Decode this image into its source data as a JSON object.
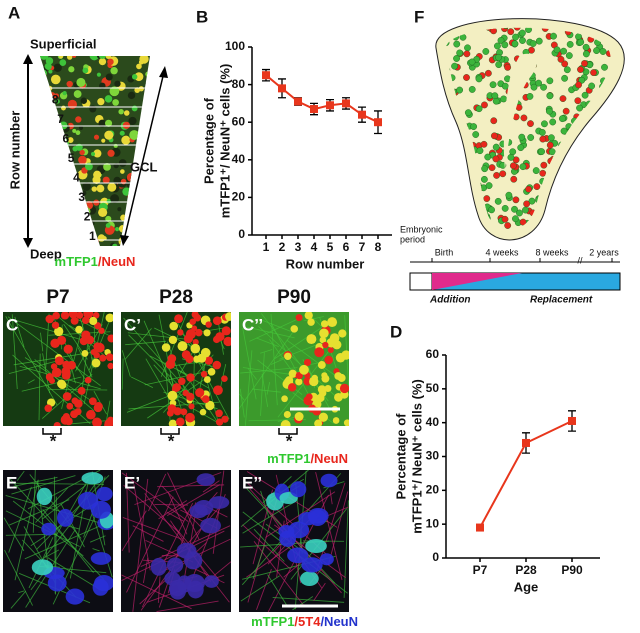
{
  "chart_data": [
    {
      "type": "line",
      "panel": "B",
      "ylabel": [
        "Percentage of",
        "mTFP1⁺/ NeuN⁺ cells (%)"
      ],
      "xlabel": "Row number",
      "categories": [
        "1",
        "2",
        "3",
        "4",
        "5",
        "6",
        "7",
        "8"
      ],
      "values": [
        85,
        78,
        71,
        67,
        69,
        70,
        64,
        60
      ],
      "errors": [
        3,
        5,
        2,
        3,
        3,
        3,
        4,
        6
      ],
      "color": "#e8361c",
      "ylim": [
        0,
        100
      ],
      "yticks": [
        0,
        20,
        40,
        60,
        80,
        100
      ]
    },
    {
      "type": "line",
      "panel": "D",
      "ylabel": [
        "Percentage of",
        "mTFP1⁺/ NeuN⁺ cells (%)"
      ],
      "xlabel": "Age",
      "categories": [
        "P7",
        "P28",
        "P90"
      ],
      "values": [
        9,
        34,
        40.5
      ],
      "errors": [
        0.5,
        3,
        3
      ],
      "color": "#e8361c",
      "ylim": [
        0,
        60
      ],
      "yticks": [
        0,
        10,
        20,
        30,
        40,
        50,
        60
      ]
    }
  ],
  "figure": {
    "panel_a": {
      "letter": "A",
      "top": "Superficial",
      "bottom": "Deep",
      "axis": "Row number",
      "gcl": "GCL",
      "rows": [
        "1",
        "2",
        "3",
        "4",
        "5",
        "6",
        "7",
        "8"
      ],
      "stain": [
        "mTFP1",
        "/NeuN"
      ]
    },
    "panel_f": {
      "letter": "F",
      "embryonic": [
        "Embryonic",
        "period"
      ],
      "birth": "Birth",
      "w4": "4 weeks",
      "w8": "8 weeks",
      "break": "//",
      "y2": "2 years",
      "addition": "Addition",
      "replacement": "Replacement"
    },
    "panel_c": {
      "ages": [
        "P7",
        "P28",
        "P90"
      ],
      "letters": [
        "C",
        "C’",
        "C’’"
      ],
      "asterisk": "*",
      "stain": [
        "mTFP1",
        "/NeuN"
      ]
    },
    "panel_e": {
      "letters": [
        "E",
        "E’",
        "E’’"
      ],
      "stain": [
        "mTFP1",
        "/5T4",
        "/NeuN"
      ]
    }
  }
}
